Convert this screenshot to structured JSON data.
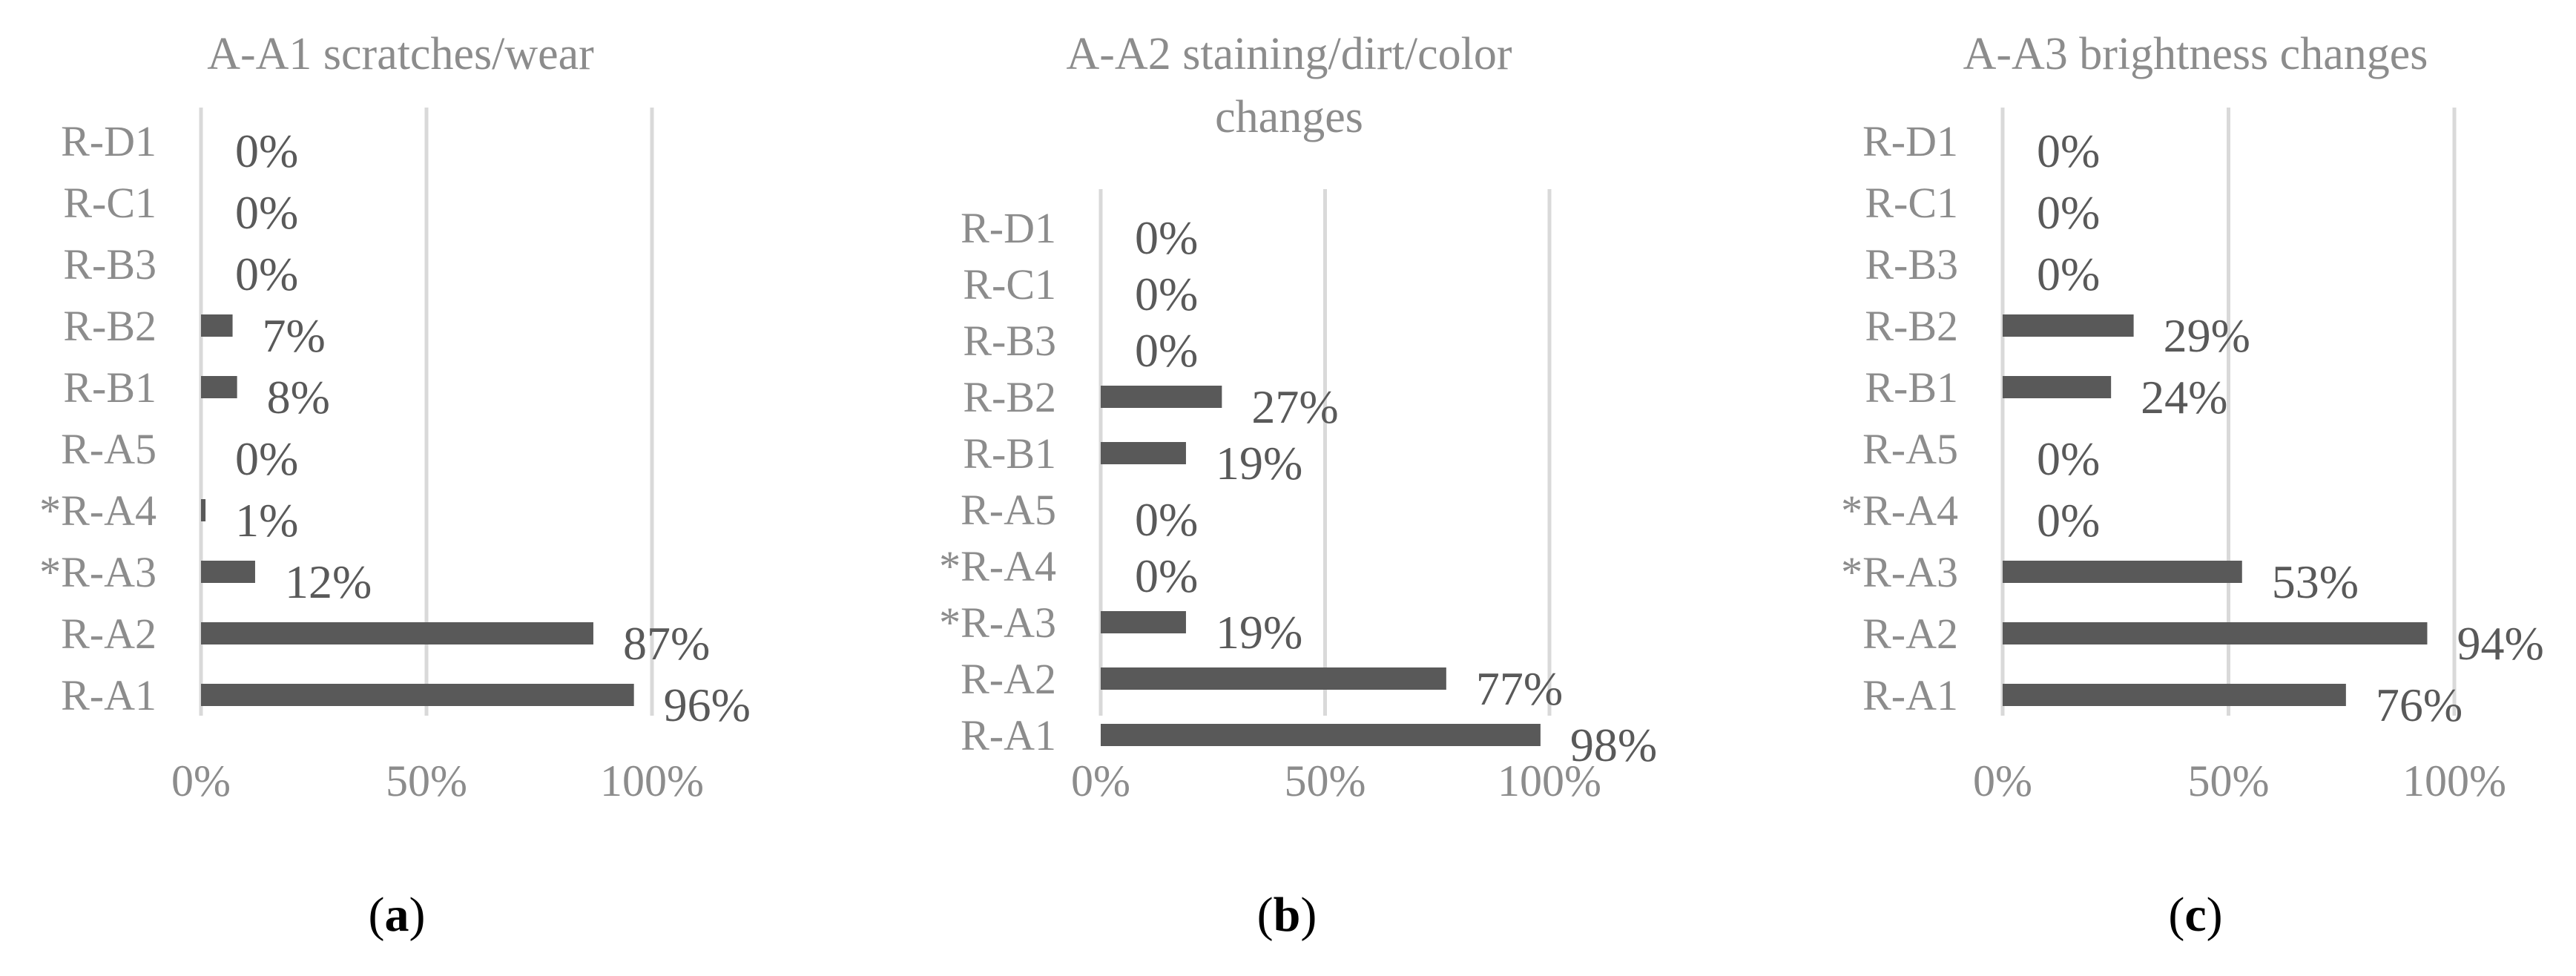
{
  "chart_data": [
    {
      "type": "bar",
      "orientation": "horizontal",
      "title": "A-A1 scratches/wear",
      "panel_label": "a",
      "categories": [
        "R-A1",
        "R-A2",
        "*R-A3",
        "*R-A4",
        "R-A5",
        "R-B1",
        "R-B2",
        "R-B3",
        "R-C1",
        "R-D1"
      ],
      "values": [
        96,
        87,
        12,
        1,
        0,
        8,
        7,
        0,
        0,
        0
      ],
      "data_labels": [
        "96%",
        "87%",
        "12%",
        "1%",
        "0%",
        "8%",
        "7%",
        "0%",
        "0%",
        "0%"
      ],
      "xticks": [
        "0%",
        "50%",
        "100%"
      ],
      "xlim": [
        0,
        100
      ],
      "grid": true,
      "legend": "none",
      "bar_color": "#595959"
    },
    {
      "type": "bar",
      "orientation": "horizontal",
      "title": "A-A2 staining/dirt/color changes",
      "panel_label": "b",
      "categories": [
        "R-A1",
        "R-A2",
        "*R-A3",
        "*R-A4",
        "R-A5",
        "R-B1",
        "R-B2",
        "R-B3",
        "R-C1",
        "R-D1"
      ],
      "values": [
        98,
        77,
        19,
        0,
        0,
        19,
        27,
        0,
        0,
        0
      ],
      "data_labels": [
        "98%",
        "77%",
        "19%",
        "0%",
        "0%",
        "19%",
        "27%",
        "0%",
        "0%",
        "0%"
      ],
      "xticks": [
        "0%",
        "50%",
        "100%"
      ],
      "xlim": [
        0,
        100
      ],
      "grid": true,
      "legend": "none",
      "bar_color": "#595959"
    },
    {
      "type": "bar",
      "orientation": "horizontal",
      "title": "A-A3 brightness changes",
      "panel_label": "c",
      "categories": [
        "R-A1",
        "R-A2",
        "*R-A3",
        "*R-A4",
        "R-A5",
        "R-B1",
        "R-B2",
        "R-B3",
        "R-C1",
        "R-D1"
      ],
      "values": [
        76,
        94,
        53,
        0,
        0,
        24,
        29,
        0,
        0,
        0
      ],
      "data_labels": [
        "76%",
        "94%",
        "53%",
        "0%",
        "0%",
        "24%",
        "29%",
        "0%",
        "0%",
        "0%"
      ],
      "xticks": [
        "0%",
        "50%",
        "100%"
      ],
      "xlim": [
        0,
        100
      ],
      "grid": true,
      "legend": "none",
      "bar_color": "#595959"
    }
  ]
}
